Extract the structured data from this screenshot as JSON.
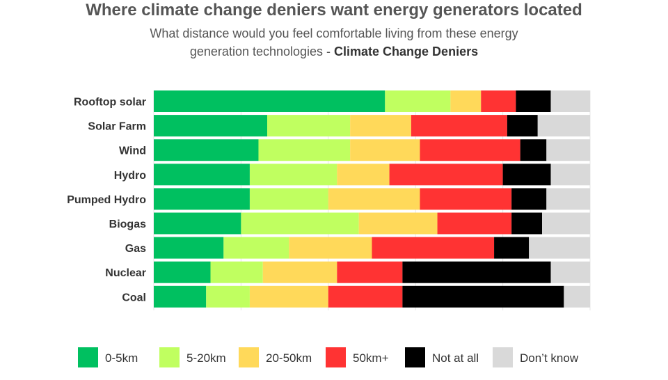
{
  "chart_data": {
    "type": "bar",
    "orientation": "horizontal",
    "stacked": true,
    "normalized_percent": true,
    "title": "Where climate change deniers want energy generators located",
    "subtitle_line1": "What distance would you feel comfortable living from these energy",
    "subtitle_line2_prefix": "generation technologies - ",
    "subtitle_line2_bold": "Climate Change Deniers",
    "xlim": [
      0,
      100
    ],
    "grid": true,
    "legend_position": "bottom",
    "categories": [
      "Rooftop solar",
      "Solar Farm",
      "Wind",
      "Hydro",
      "Pumped Hydro",
      "Biogas",
      "Gas",
      "Nuclear",
      "Coal"
    ],
    "series": [
      {
        "name": "0-5km",
        "color": "#00c060",
        "values": [
          53,
          26,
          24,
          22,
          22,
          20,
          16,
          13,
          12
        ]
      },
      {
        "name": "5-20km",
        "color": "#c0ff60",
        "values": [
          15,
          19,
          21,
          20,
          18,
          27,
          15,
          12,
          10
        ]
      },
      {
        "name": "20-50km",
        "color": "#ffd95a",
        "values": [
          7,
          14,
          16,
          12,
          21,
          18,
          19,
          17,
          18
        ]
      },
      {
        "name": "50km+",
        "color": "#ff3333",
        "values": [
          8,
          22,
          23,
          26,
          21,
          17,
          28,
          15,
          17
        ]
      },
      {
        "name": "Not at all",
        "color": "#000000",
        "values": [
          8,
          7,
          6,
          11,
          8,
          7,
          8,
          34,
          37
        ]
      },
      {
        "name": "Don’t know",
        "color": "#d9d9d9",
        "values": [
          9,
          12,
          10,
          9,
          10,
          11,
          14,
          9,
          6
        ]
      }
    ]
  }
}
